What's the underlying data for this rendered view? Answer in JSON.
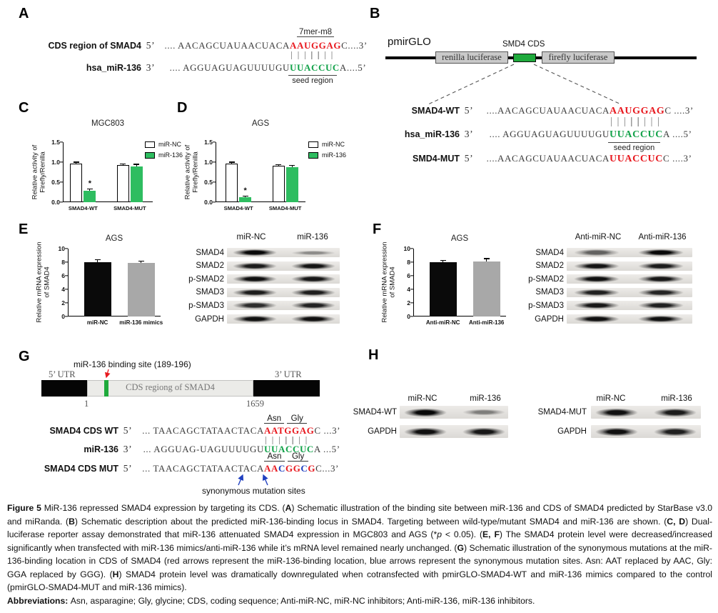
{
  "panelA": {
    "label": "A",
    "row1": {
      "name": "CDS region of SMAD4",
      "prime": "5’",
      "pre": ".... AACAGCUAUAACUACA",
      "hl": "AAUGGAG",
      "post": "C....3’",
      "mer": "7mer-m8"
    },
    "row2": {
      "name": "hsa_miR-136",
      "prime": "3’",
      "pre": ".... AGGUAGUAGUUUUGU",
      "hl": "UUACCUC",
      "post": "A....5’",
      "seed": "seed region"
    }
  },
  "panelB": {
    "label": "B",
    "plasmid": "pmirGLO",
    "renilla": "renilla luciferase",
    "cds_tag": "SMD4 CDS",
    "firefly": "firefly luciferase",
    "wt": {
      "name": "SMAD4-WT",
      "prime": "5’",
      "pre": "....AACAGCUAUAACUACA",
      "hl": "AAUGGAG",
      "post": "C ....3’"
    },
    "mir": {
      "name": "hsa_miR-136",
      "prime": "3’",
      "pre": ".... AGGUAGUAGUUUUGU",
      "hl": "UUACCUC",
      "post": "A ....5’",
      "seed": "seed region"
    },
    "mut": {
      "name": "SMD4-MUT",
      "prime": "5’",
      "pre": "....AACAGCUAUAACUACA",
      "hl": "UUACCUC",
      "post": "C ....3’"
    }
  },
  "panelC": {
    "label": "C"
  },
  "panelD": {
    "label": "D"
  },
  "panelE": {
    "label": "E"
  },
  "panelF": {
    "label": "F"
  },
  "panelG": {
    "label": "G",
    "binding_site": "miR-136 binding site (189-196)",
    "utr5": "5’ UTR",
    "utr3": "3’ UTR",
    "cds_box": "CDS  regiong  of  SMAD4",
    "pos_start": "1",
    "pos_end": "1659",
    "asn": "Asn",
    "gly": "Gly",
    "wt": {
      "name": "SMAD4 CDS WT",
      "prime": "5’",
      "pre": "... TAACAGCTATAACTACA",
      "hl": "AATGGAG",
      "post": "C ...3’"
    },
    "mir": {
      "name": "miR-136",
      "prime": "3’",
      "pre": "... AGGUAG-UAGUUUUGU",
      "hl": "UUACCUC",
      "post": "A ...5’"
    },
    "mut": {
      "name": "SMAD4 CDS MUT",
      "prime": "5’",
      "pre": "... TAACAGCTATAACTACA",
      "p1": "AA",
      "b1": "C",
      "p2": "GG",
      "b2": "C",
      "p3": "G",
      "post": "C...3’"
    },
    "mut_note": "synonymous mutation sites"
  },
  "panelH": {
    "label": "H"
  },
  "chart_data": [
    {
      "panel": "C",
      "type": "bar",
      "title": "MGC803",
      "ylabel": "Relative activity of\nFirefly/Renilla",
      "ylim": [
        0,
        1.5
      ],
      "yticks": [
        "0.0",
        "0.5",
        "1.0",
        "1.5"
      ],
      "categories": [
        "SMAD4-WT",
        "SMAD4-MUT"
      ],
      "series": [
        {
          "name": "miR-NC",
          "color": "#ffffff",
          "border": "#000000",
          "values": [
            0.97,
            0.93
          ],
          "errors": [
            0.04,
            0.035
          ]
        },
        {
          "name": "miR-136",
          "color": "#2ebd60",
          "values": [
            0.28,
            0.9
          ],
          "errors": [
            0.06,
            0.06
          ],
          "stars": [
            "*",
            ""
          ]
        }
      ],
      "legend": true
    },
    {
      "panel": "D",
      "type": "bar",
      "title": "AGS",
      "ylabel": "Relative activity of\nFirefly/Renilla",
      "ylim": [
        0,
        1.5
      ],
      "yticks": [
        "0.0",
        "0.5",
        "1.0",
        "1.5"
      ],
      "categories": [
        "SMAD4-WT",
        "SMAD4-MUT"
      ],
      "series": [
        {
          "name": "miR-NC",
          "color": "#ffffff",
          "border": "#000000",
          "values": [
            0.96,
            0.91
          ],
          "errors": [
            0.05,
            0.04
          ]
        },
        {
          "name": "miR-136",
          "color": "#2ebd60",
          "values": [
            0.12,
            0.87
          ],
          "errors": [
            0.045,
            0.06
          ],
          "stars": [
            "*",
            ""
          ]
        }
      ],
      "legend": true
    },
    {
      "panel": "E",
      "type": "bar",
      "title": "AGS",
      "ylabel": "Relative mRNA expression\nof SMAD4",
      "ylim": [
        0,
        10
      ],
      "yticks": [
        "0",
        "2",
        "4",
        "6",
        "8",
        "10"
      ],
      "categories": [
        "miR-NC",
        "miR-136 mimics"
      ],
      "series": [
        {
          "name": "SMAD4 mRNA",
          "colors": [
            "#0a0a0a",
            "#a8a8a8"
          ],
          "values": [
            8.0,
            7.9
          ],
          "errors": [
            0.4,
            0.35
          ]
        }
      ],
      "legend": false
    },
    {
      "panel": "F",
      "type": "bar",
      "title": "AGS",
      "ylabel": "Relative mRNA expression\nof SMAD4",
      "ylim": [
        0,
        10
      ],
      "yticks": [
        "0",
        "2",
        "4",
        "6",
        "8",
        "10"
      ],
      "categories": [
        "Anti-miR-NC",
        "Anti-miR-136"
      ],
      "series": [
        {
          "name": "SMAD4 mRNA",
          "colors": [
            "#0a0a0a",
            "#a8a8a8"
          ],
          "values": [
            8.0,
            8.15
          ],
          "errors": [
            0.35,
            0.45
          ]
        }
      ],
      "legend": false
    }
  ],
  "blots": {
    "E": {
      "cols": [
        "miR-NC",
        "miR-136"
      ],
      "rows": [
        [
          "SMAD4",
          1.0,
          0.2
        ],
        [
          "SMAD2",
          0.88,
          0.92
        ],
        [
          "p-SMAD2",
          0.95,
          0.9
        ],
        [
          "SMAD3",
          0.88,
          0.86
        ],
        [
          "p-SMAD3",
          0.78,
          0.84
        ],
        [
          "GAPDH",
          0.95,
          0.95
        ]
      ]
    },
    "F": {
      "cols": [
        "Anti-miR-NC",
        "Anti-miR-136"
      ],
      "rows": [
        [
          "SMAD4",
          0.45,
          1.0
        ],
        [
          "SMAD2",
          0.92,
          0.88
        ],
        [
          "p-SMAD2",
          0.95,
          0.9
        ],
        [
          "SMAD3",
          0.85,
          0.83
        ],
        [
          "p-SMAD3",
          0.9,
          0.85
        ],
        [
          "GAPDH",
          0.95,
          0.95
        ]
      ]
    },
    "H1": {
      "cols": [
        "miR-NC",
        "miR-136"
      ],
      "rows": [
        [
          "SMAD4-WT",
          1.0,
          0.28
        ],
        [
          "GAPDH",
          0.95,
          0.9
        ]
      ]
    },
    "H2": {
      "cols": [
        "miR-NC",
        "miR-136"
      ],
      "rows": [
        [
          "SMAD4-MUT",
          0.95,
          0.88
        ],
        [
          "GAPDH",
          0.95,
          0.85
        ]
      ]
    }
  },
  "caption": {
    "segments": [
      {
        "t": "Figure 5 ",
        "b": 1
      },
      {
        "t": "MiR-136 repressed SMAD4 expression by targeting its CDS. ("
      },
      {
        "t": "A",
        "b": 1
      },
      {
        "t": ") Schematic illustration of the binding site between miR-136 and CDS of SMAD4 predicted by StarBase v3.0 and miRanda. ("
      },
      {
        "t": "B",
        "b": 1
      },
      {
        "t": ") Schematic description about the predicted miR-136-binding locus in SMAD4. Targeting between wild-type/mutant SMAD4 and miR-136 are shown. ("
      },
      {
        "t": "C, D",
        "b": 1
      },
      {
        "t": ") Dual-luciferase reporter assay demonstrated that miR-136 attenuated SMAD4 expression in MGC803 and AGS (*"
      },
      {
        "t": "p",
        "i": 1
      },
      {
        "t": " < 0.05). ("
      },
      {
        "t": "E, F",
        "b": 1
      },
      {
        "t": ") The SMAD4 protein level were decreased/increased significantly when transfected with miR-136 mimics/anti-miR-136 while it’s mRNA level remained nearly unchanged. ("
      },
      {
        "t": "G",
        "b": 1
      },
      {
        "t": ") Schematic illustration of the synonymous mutations at the miR-136-binding location in CDS of SMAD4 (red arrows represent the miR-136-binding location, blue arrows represent the synonymous mutation sites. Asn: AAT replaced by AAC, Gly: GGA replaced by GGG). ("
      },
      {
        "t": "H",
        "b": 1
      },
      {
        "t": ") SMAD4 protein level was dramatically downregulated when cotransfected with pmirGLO-SMAD4-WT and miR-136 mimics compared to the control (pmirGLO-SMAD4-MUT and miR-136 mimics)."
      }
    ],
    "abbrev": [
      {
        "t": "Abbreviations: ",
        "b": 1
      },
      {
        "t": "Asn, asparagine; Gly, glycine; CDS, coding sequence; Anti-miR-NC, miR-NC inhibitors; Anti-miR-136, miR-136 inhibitors."
      }
    ]
  }
}
